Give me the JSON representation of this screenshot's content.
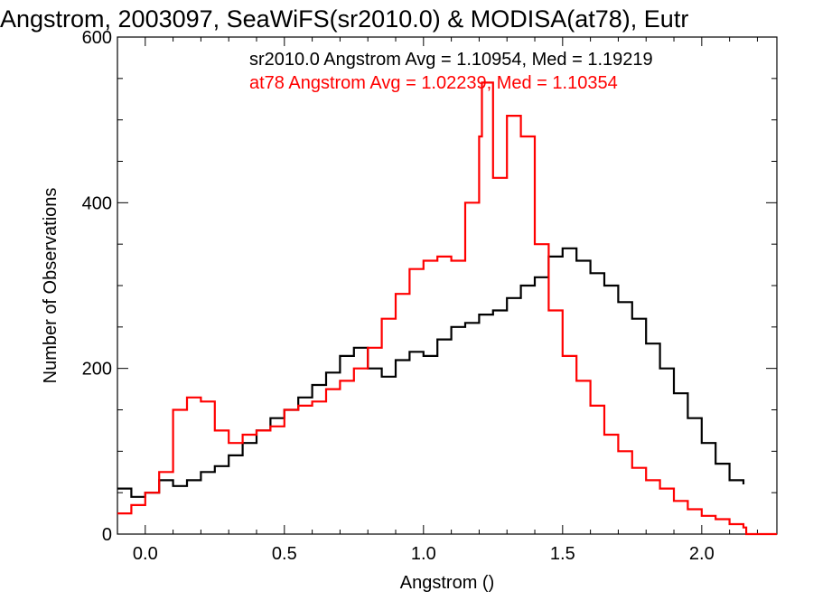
{
  "chart_data": {
    "type": "line",
    "title": "Angstrom, 2003097, SeaWiFS(sr2010.0) & MODISA(at78), Eutr",
    "xlabel": "Angstrom ()",
    "ylabel": "Number of Observations",
    "xlim": [
      -0.1,
      2.27
    ],
    "ylim": [
      0,
      600
    ],
    "x_ticks": [
      0.0,
      0.5,
      1.0,
      1.5,
      2.0
    ],
    "x_tick_labels": [
      "0.0",
      "0.5",
      "1.0",
      "1.5",
      "2.0"
    ],
    "y_ticks": [
      0,
      200,
      400,
      600
    ],
    "y_tick_labels": [
      "0",
      "200",
      "400",
      "600"
    ],
    "annotations": [
      {
        "text": "sr2010.0 Angstrom Avg = 1.10954, Med = 1.19219",
        "color": "#000000"
      },
      {
        "text": "at78 Angstrom Avg = 1.02239, Med = 1.10354",
        "color": "#ff0000"
      }
    ],
    "series": [
      {
        "color": "#000000",
        "x": [
          -0.1,
          -0.05,
          0.0,
          0.05,
          0.1,
          0.15,
          0.2,
          0.25,
          0.3,
          0.35,
          0.4,
          0.45,
          0.5,
          0.55,
          0.6,
          0.65,
          0.7,
          0.75,
          0.8,
          0.85,
          0.9,
          0.95,
          1.0,
          1.05,
          1.1,
          1.15,
          1.2,
          1.25,
          1.3,
          1.35,
          1.4,
          1.45,
          1.5,
          1.55,
          1.6,
          1.65,
          1.7,
          1.75,
          1.8,
          1.85,
          1.9,
          1.95,
          2.0,
          2.05,
          2.1,
          2.15
        ],
        "y": [
          55,
          45,
          50,
          65,
          58,
          65,
          75,
          82,
          95,
          110,
          125,
          140,
          150,
          165,
          180,
          195,
          215,
          225,
          200,
          190,
          210,
          220,
          215,
          235,
          250,
          255,
          265,
          270,
          285,
          300,
          310,
          335,
          345,
          330,
          315,
          300,
          280,
          260,
          230,
          200,
          170,
          140,
          110,
          85,
          65,
          60
        ]
      },
      {
        "color": "#ff0000",
        "x": [
          -0.1,
          -0.05,
          0.0,
          0.05,
          0.1,
          0.15,
          0.2,
          0.25,
          0.3,
          0.35,
          0.4,
          0.45,
          0.5,
          0.55,
          0.6,
          0.65,
          0.7,
          0.75,
          0.8,
          0.85,
          0.9,
          0.95,
          1.0,
          1.05,
          1.1,
          1.15,
          1.2,
          1.21,
          1.25,
          1.3,
          1.35,
          1.4,
          1.45,
          1.5,
          1.55,
          1.6,
          1.65,
          1.7,
          1.75,
          1.8,
          1.85,
          1.9,
          1.95,
          2.0,
          2.05,
          2.1,
          2.15,
          2.16,
          2.27
        ],
        "y": [
          25,
          35,
          50,
          75,
          150,
          165,
          160,
          125,
          110,
          120,
          125,
          130,
          150,
          155,
          160,
          175,
          185,
          200,
          225,
          260,
          290,
          320,
          330,
          335,
          330,
          400,
          480,
          545,
          430,
          505,
          480,
          350,
          270,
          215,
          185,
          155,
          120,
          100,
          80,
          65,
          55,
          40,
          30,
          22,
          18,
          12,
          8,
          0,
          0
        ]
      }
    ]
  }
}
